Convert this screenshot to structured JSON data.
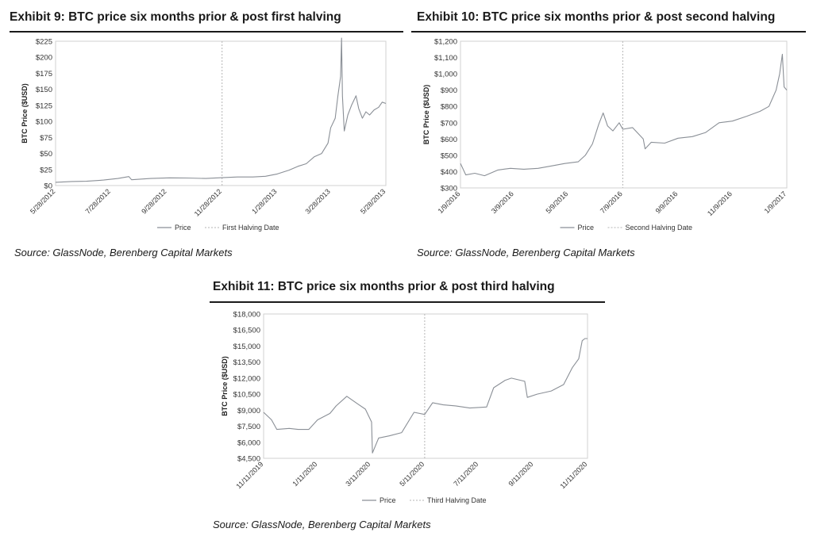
{
  "exhibits": [
    {
      "title": "Exhibit 9: BTC price six months prior & post first halving",
      "source": "Source: GlassNode, Berenberg Capital Markets",
      "chart_data": {
        "type": "line",
        "title": "",
        "ylabel": "BTC Price ($USD)",
        "xlabel": "",
        "ylim": [
          0,
          225
        ],
        "yticks": [
          0,
          25,
          50,
          75,
          100,
          125,
          150,
          175,
          200,
          225
        ],
        "ytick_labels": [
          "$0",
          "$25",
          "$50",
          "$75",
          "$100",
          "$125",
          "$150",
          "$175",
          "$200",
          "$225"
        ],
        "xlim": [
          "2012-05-28",
          "2013-05-28"
        ],
        "xticks": [
          "2012-05-28",
          "2012-07-28",
          "2012-09-28",
          "2012-11-28",
          "2013-01-28",
          "2013-03-28",
          "2013-05-28"
        ],
        "xtick_labels": [
          "5/28/2012",
          "7/28/2012",
          "9/28/2012",
          "11/28/2012",
          "1/28/2013",
          "3/28/2013",
          "5/28/2013"
        ],
        "halving_date": "2012-11-28",
        "legend": [
          "Price",
          "First Halving Date"
        ],
        "legend_position": "bottom",
        "grid": false,
        "series": [
          {
            "name": "Price",
            "x": [
              "2012-05-28",
              "2012-06-15",
              "2012-07-01",
              "2012-07-20",
              "2012-08-05",
              "2012-08-17",
              "2012-08-20",
              "2012-09-10",
              "2012-10-01",
              "2012-10-20",
              "2012-11-10",
              "2012-11-28",
              "2012-12-15",
              "2013-01-01",
              "2013-01-15",
              "2013-01-28",
              "2013-02-10",
              "2013-02-20",
              "2013-03-01",
              "2013-03-10",
              "2013-03-18",
              "2013-03-25",
              "2013-03-28",
              "2013-04-02",
              "2013-04-05",
              "2013-04-08",
              "2013-04-09",
              "2013-04-10",
              "2013-04-12",
              "2013-04-16",
              "2013-04-20",
              "2013-04-25",
              "2013-04-28",
              "2013-05-02",
              "2013-05-06",
              "2013-05-10",
              "2013-05-15",
              "2013-05-20",
              "2013-05-24",
              "2013-05-28"
            ],
            "values": [
              5.1,
              6.3,
              6.7,
              8.5,
              11,
              14,
              9,
              11,
              12,
              11.8,
              11,
              12.3,
              13.4,
              13.4,
              14.5,
              18,
              24,
              30,
              34,
              45,
              50,
              66,
              90,
              105,
              140,
              170,
              230,
              140,
              85,
              110,
              125,
              140,
              120,
              105,
              115,
              110,
              118,
              122,
              130,
              128
            ]
          }
        ]
      }
    },
    {
      "title": "Exhibit 10: BTC price six months prior & post second halving",
      "source": "Source: GlassNode, Berenberg Capital Markets",
      "chart_data": {
        "type": "line",
        "title": "",
        "ylabel": "BTC Price ($USD)",
        "xlabel": "",
        "ylim": [
          300,
          1200
        ],
        "yticks": [
          300,
          400,
          500,
          600,
          700,
          800,
          900,
          1000,
          1100,
          1200
        ],
        "ytick_labels": [
          "$300",
          "$400",
          "$500",
          "$600",
          "$700",
          "$800",
          "$900",
          "$1,000",
          "$1,100",
          "$1,200"
        ],
        "xlim": [
          "2016-01-09",
          "2017-01-09"
        ],
        "xticks": [
          "2016-01-09",
          "2016-03-09",
          "2016-05-09",
          "2016-07-09",
          "2016-09-09",
          "2016-11-09",
          "2017-01-09"
        ],
        "xtick_labels": [
          "1/9/2016",
          "3/9/2016",
          "5/9/2016",
          "7/9/2016",
          "9/9/2016",
          "11/9/2016",
          "1/9/2017"
        ],
        "halving_date": "2016-07-09",
        "legend": [
          "Price",
          "Second Halving Date"
        ],
        "legend_position": "bottom",
        "grid": false,
        "series": [
          {
            "name": "Price",
            "x": [
              "2016-01-09",
              "2016-01-15",
              "2016-01-25",
              "2016-02-05",
              "2016-02-20",
              "2016-03-05",
              "2016-03-20",
              "2016-04-05",
              "2016-04-20",
              "2016-05-05",
              "2016-05-20",
              "2016-05-28",
              "2016-06-05",
              "2016-06-12",
              "2016-06-17",
              "2016-06-22",
              "2016-06-28",
              "2016-07-05",
              "2016-07-09",
              "2016-07-20",
              "2016-08-01",
              "2016-08-03",
              "2016-08-10",
              "2016-08-25",
              "2016-09-09",
              "2016-09-25",
              "2016-10-10",
              "2016-10-25",
              "2016-11-09",
              "2016-11-25",
              "2016-12-10",
              "2016-12-20",
              "2016-12-28",
              "2017-01-01",
              "2017-01-04",
              "2017-01-06",
              "2017-01-09"
            ],
            "values": [
              450,
              380,
              390,
              375,
              410,
              420,
              415,
              420,
              435,
              450,
              460,
              500,
              570,
              690,
              760,
              680,
              650,
              700,
              660,
              670,
              600,
              540,
              580,
              575,
              605,
              615,
              640,
              700,
              710,
              740,
              770,
              800,
              900,
              1000,
              1120,
              920,
              900
            ]
          }
        ]
      }
    },
    {
      "title": "Exhibit 11: BTC price six months prior & post third halving",
      "source": "Source: GlassNode, Berenberg Capital Markets",
      "chart_data": {
        "type": "line",
        "title": "",
        "ylabel": "BTC Price ($USD)",
        "xlabel": "",
        "ylim": [
          4500,
          18000
        ],
        "yticks": [
          4500,
          6000,
          7500,
          9000,
          10500,
          12000,
          13500,
          15000,
          16500,
          18000
        ],
        "ytick_labels": [
          "$4,500",
          "$6,000",
          "$7,500",
          "$9,000",
          "$10,500",
          "$12,000",
          "$13,500",
          "$15,000",
          "$16,500",
          "$18,000"
        ],
        "xlim": [
          "2019-11-11",
          "2020-11-11"
        ],
        "xticks": [
          "2019-11-11",
          "2020-01-11",
          "2020-03-11",
          "2020-05-11",
          "2020-07-11",
          "2020-09-11",
          "2020-11-11"
        ],
        "xtick_labels": [
          "11/11/2019",
          "1/11/2020",
          "3/11/2020",
          "5/11/2020",
          "7/11/2020",
          "9/11/2020",
          "11/11/2020"
        ],
        "halving_date": "2020-05-11",
        "legend": [
          "Price",
          "Third Halving Date"
        ],
        "legend_position": "bottom",
        "grid": false,
        "series": [
          {
            "name": "Price",
            "x": [
              "2019-11-11",
              "2019-11-20",
              "2019-11-26",
              "2019-12-10",
              "2019-12-20",
              "2020-01-01",
              "2020-01-11",
              "2020-01-25",
              "2020-02-01",
              "2020-02-13",
              "2020-02-25",
              "2020-03-05",
              "2020-03-12",
              "2020-03-13",
              "2020-03-20",
              "2020-04-01",
              "2020-04-15",
              "2020-04-29",
              "2020-05-11",
              "2020-05-20",
              "2020-06-01",
              "2020-06-15",
              "2020-07-01",
              "2020-07-20",
              "2020-07-28",
              "2020-08-10",
              "2020-08-17",
              "2020-09-01",
              "2020-09-04",
              "2020-09-15",
              "2020-10-01",
              "2020-10-15",
              "2020-10-25",
              "2020-11-01",
              "2020-11-05",
              "2020-11-08",
              "2020-11-11"
            ],
            "values": [
              8800,
              8100,
              7200,
              7300,
              7200,
              7200,
              8100,
              8700,
              9400,
              10300,
              9600,
              9100,
              7900,
              5000,
              6400,
              6600,
              6900,
              8800,
              8600,
              9700,
              9500,
              9400,
              9200,
              9300,
              11100,
              11800,
              12000,
              11700,
              10200,
              10500,
              10800,
              11400,
              13000,
              13800,
              15500,
              15700,
              15700
            ]
          }
        ]
      }
    }
  ]
}
